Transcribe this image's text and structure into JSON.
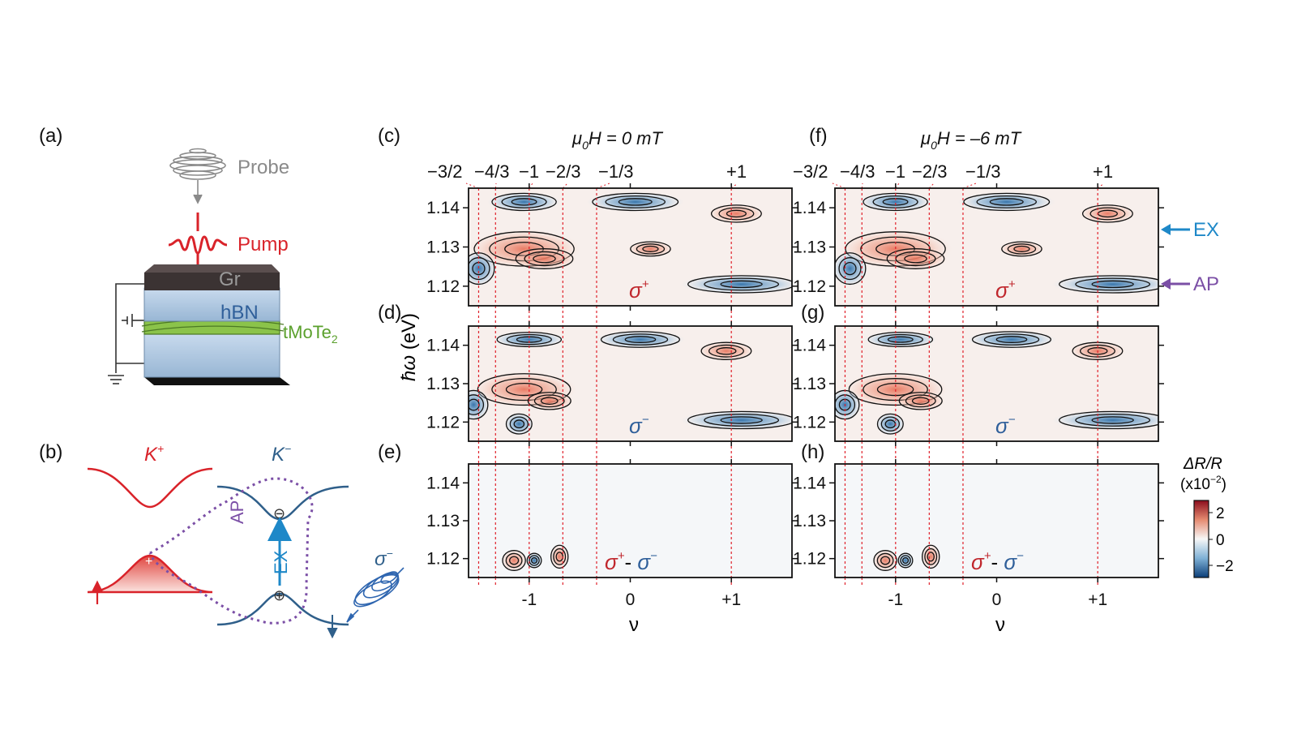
{
  "panel_labels": [
    "(a)",
    "(b)",
    "(c)",
    "(d)",
    "(e)",
    "(f)",
    "(g)",
    "(h)"
  ],
  "schematic": {
    "probe": "Probe",
    "pump": "Pump",
    "gr": "Gr",
    "hbn": "hBN",
    "tmote2": "tMoTe",
    "tmote2_sub": "2",
    "colors": {
      "probe": "#8a8a8a",
      "pump": "#d9232a",
      "gr": "#4a4040",
      "hbn": "#b7cde4",
      "tmote2": "#8bc34a"
    }
  },
  "band_diagram": {
    "k_plus": "K",
    "k_plus_sup": "+",
    "k_minus": "K",
    "k_minus_sup": "−",
    "ap": "AP",
    "ex": "EX",
    "minus_sign": "⊖",
    "plus_sign": "⊕",
    "hole_plus": "+",
    "sigma": "σ",
    "sigma_sup": "−",
    "colors": {
      "k_plus": "#d9232a",
      "k_minus": "#2f5f8a",
      "ap": "#7b4fa6",
      "ex": "#1e88c8"
    }
  },
  "field_titles": {
    "left": {
      "mu": "μ",
      "sub": "0",
      "rest": "H  = 0 mT"
    },
    "right": {
      "mu": "μ",
      "sub": "0",
      "rest": "H  = –6 mT"
    }
  },
  "filling_labels": [
    "−3/2",
    "−4/3",
    "−1",
    "−2/3",
    "−1/3",
    "+1"
  ],
  "y_axis_label": {
    "hbar_omega": "ħω",
    "unit": " (eV)"
  },
  "x_axis_label": "ν",
  "y_ticks": [
    "1.14",
    "1.13",
    "1.12"
  ],
  "x_ticks": [
    "-1",
    "0",
    "+1"
  ],
  "row_labels": [
    {
      "text": "σ",
      "sup": "+",
      "color": "#c0272d"
    },
    {
      "text": "σ",
      "sup": "−",
      "color": "#2f5f9a"
    },
    {
      "text_a": "σ",
      "sup_a": "+",
      "dash": "- ",
      "text_b": "σ",
      "sup_b": "−"
    }
  ],
  "side_arrows": {
    "ex": "EX",
    "ap": "AP",
    "ex_color": "#1e88c8",
    "ap_color": "#7b4fa6"
  },
  "colorbar": {
    "title": "ΔR/R",
    "scale": "(x10",
    "scale_exp": "−2",
    "scale_close": ")",
    "ticks": [
      "2",
      "0",
      "−2"
    ]
  },
  "chart_data": {
    "type": "heatmap",
    "x_label": "ν",
    "y_label": "ħω (eV)",
    "xlim": [
      -1.6,
      1.6
    ],
    "ylim": [
      1.115,
      1.145
    ],
    "y_ticks": [
      1.14,
      1.13,
      1.12
    ],
    "x_ticks": [
      -1,
      0,
      1
    ],
    "dashed_filling_lines": [
      -1.5,
      -1.333,
      -1,
      -0.667,
      -0.333,
      1
    ],
    "colorbar_range": [
      -2,
      2
    ],
    "panels": [
      {
        "id": "c",
        "field_mT": 0,
        "polarization": "σ+"
      },
      {
        "id": "d",
        "field_mT": 0,
        "polarization": "σ−"
      },
      {
        "id": "e",
        "field_mT": 0,
        "polarization": "σ+ - σ−"
      },
      {
        "id": "f",
        "field_mT": -6,
        "polarization": "σ+"
      },
      {
        "id": "g",
        "field_mT": -6,
        "polarization": "σ−"
      },
      {
        "id": "h",
        "field_mT": -6,
        "polarization": "σ+ - σ−"
      }
    ]
  }
}
